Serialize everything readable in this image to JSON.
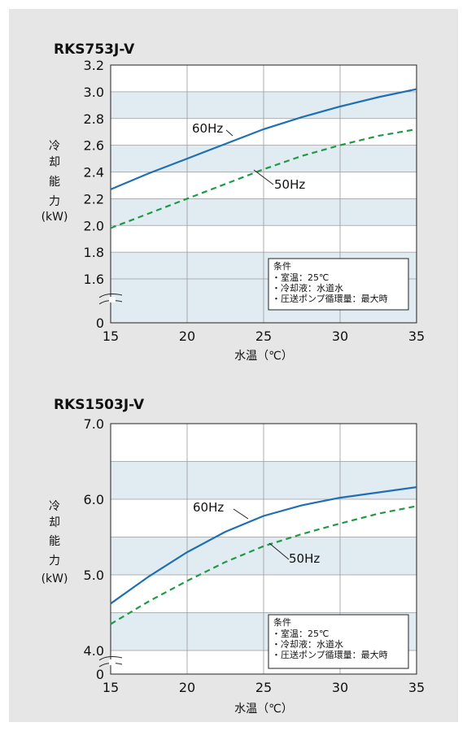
{
  "colors": {
    "panel_bg": "#e6e6e6",
    "plot_bg": "#ffffff",
    "band": "#e1ebf2",
    "grid": "#9a9a9a",
    "axis": "#222222",
    "line_60hz": "#1f6fb2",
    "line_50hz": "#1f9a44",
    "text": "#111111"
  },
  "chart_data": [
    {
      "type": "line",
      "title": "RKS753J-V",
      "xlabel": "水温（℃）",
      "ylabel": "冷却能力(kW)",
      "xlim": [
        15,
        35
      ],
      "ylim": [
        1.5,
        3.2
      ],
      "y_axis_break": true,
      "x_ticks": [
        "15",
        "20",
        "25",
        "30",
        "35"
      ],
      "y_ticks": [
        {
          "value": 1.6,
          "label": "1.6"
        },
        {
          "value": 1.8,
          "label": "1.8"
        },
        {
          "value": 2.0,
          "label": "2.0"
        },
        {
          "value": 2.2,
          "label": "2.2"
        },
        {
          "value": 2.4,
          "label": "2.4"
        },
        {
          "value": 2.6,
          "label": "2.6"
        },
        {
          "value": 2.8,
          "label": "2.8"
        },
        {
          "value": 3.0,
          "label": "3.0"
        },
        {
          "value": 3.2,
          "label": "3.2"
        }
      ],
      "y_zero_label": "0",
      "grid": true,
      "series": [
        {
          "name": "60Hz",
          "style": "solid",
          "x": [
            15,
            17.5,
            20,
            22.5,
            25,
            27.5,
            30,
            32.5,
            35
          ],
          "y": [
            2.27,
            2.39,
            2.5,
            2.61,
            2.72,
            2.81,
            2.89,
            2.96,
            3.02
          ]
        },
        {
          "name": "50Hz",
          "style": "dashed",
          "x": [
            15,
            17.5,
            20,
            22.5,
            25,
            27.5,
            30,
            32.5,
            35
          ],
          "y": [
            1.98,
            2.09,
            2.2,
            2.31,
            2.42,
            2.52,
            2.6,
            2.67,
            2.72
          ]
        }
      ],
      "condition_box": {
        "title": "条件",
        "lines": [
          "・室温：25℃",
          "・冷却液：水道水",
          "・圧送ポンプ循環量：最大時"
        ]
      }
    },
    {
      "type": "line",
      "title": "RKS1503J-V",
      "xlabel": "水温（℃）",
      "ylabel": "冷却能力(kW)",
      "xlim": [
        15,
        35
      ],
      "ylim": [
        3.85,
        7.0
      ],
      "y_axis_break": true,
      "x_ticks": [
        "15",
        "20",
        "25",
        "30",
        "35"
      ],
      "y_ticks": [
        {
          "value": 4.0,
          "label": "4.0"
        },
        {
          "value": 5.0,
          "label": "5.0"
        },
        {
          "value": 6.0,
          "label": "6.0"
        },
        {
          "value": 7.0,
          "label": "7.0"
        }
      ],
      "y_zero_label": "0",
      "grid": true,
      "series": [
        {
          "name": "60Hz",
          "style": "solid",
          "x": [
            15,
            17.5,
            20,
            22.5,
            25,
            27.5,
            30,
            32.5,
            35
          ],
          "y": [
            4.62,
            4.98,
            5.3,
            5.57,
            5.78,
            5.92,
            6.02,
            6.09,
            6.16
          ]
        },
        {
          "name": "50Hz",
          "style": "dashed",
          "x": [
            15,
            17.5,
            20,
            22.5,
            25,
            27.5,
            30,
            32.5,
            35
          ],
          "y": [
            4.35,
            4.65,
            4.92,
            5.17,
            5.38,
            5.54,
            5.68,
            5.81,
            5.91
          ]
        }
      ],
      "condition_box": {
        "title": "条件",
        "lines": [
          "・室温：25℃",
          "・冷却液：水道水",
          "・圧送ポンプ循環量：最大時"
        ]
      }
    }
  ]
}
